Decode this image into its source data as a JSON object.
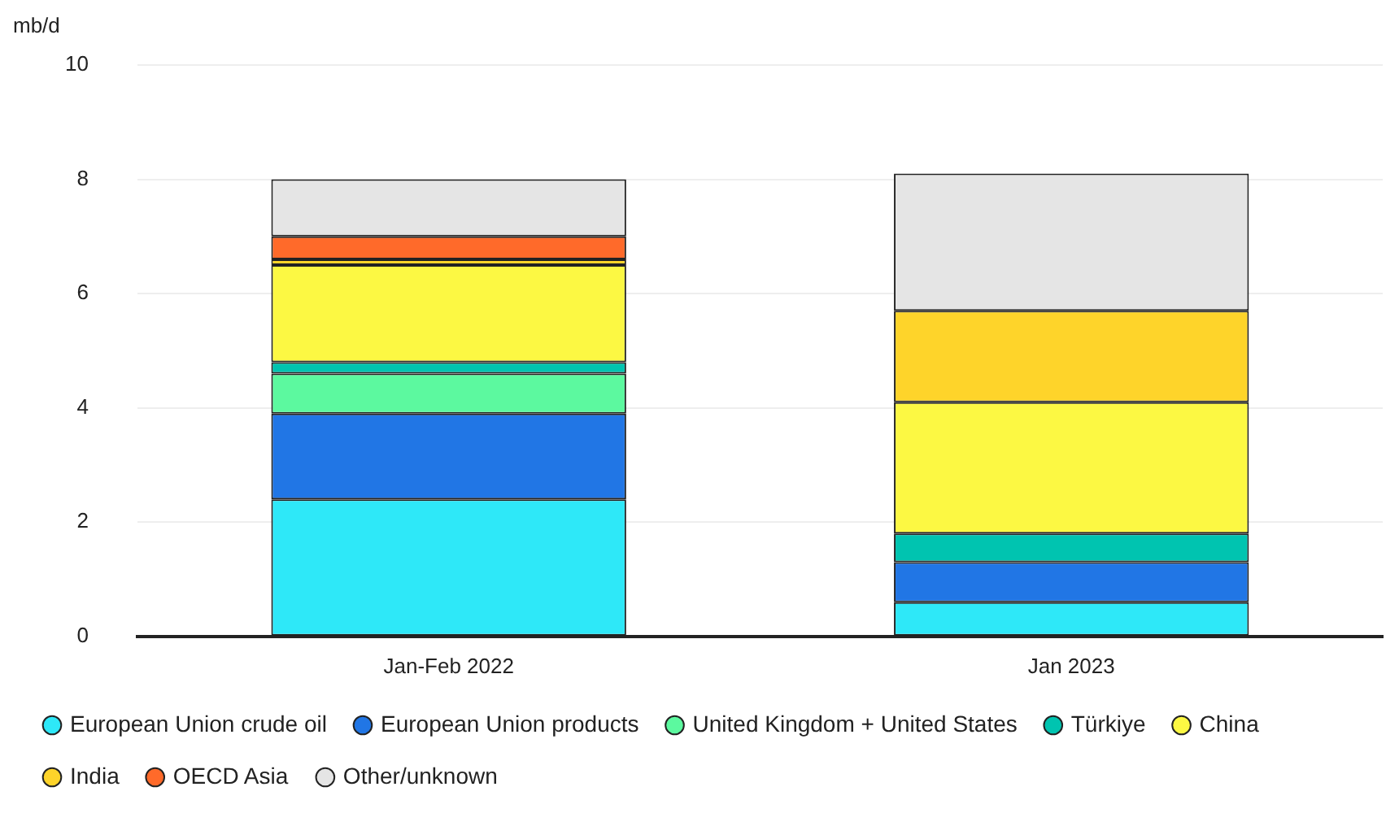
{
  "chart_data": {
    "type": "bar",
    "stacked": true,
    "ylabel": "mb/d",
    "categories": [
      "Jan-Feb 2022",
      "Jan 2023"
    ],
    "ylim": [
      0,
      10
    ],
    "yticks": [
      0,
      2,
      4,
      6,
      8,
      10
    ],
    "grid": "y",
    "legend": "bottom",
    "marker": "circle",
    "series": [
      {
        "name": "European Union crude oil",
        "color": "#2ee8f8",
        "values": [
          2.4,
          0.6
        ]
      },
      {
        "name": "European Union products",
        "color": "#2176e5",
        "values": [
          1.5,
          0.7
        ]
      },
      {
        "name": "United Kingdom + United States",
        "color": "#5cf99f",
        "values": [
          0.7,
          0
        ]
      },
      {
        "name": "Türkiye",
        "color": "#00c4b0",
        "values": [
          0.2,
          0.5
        ]
      },
      {
        "name": "China",
        "color": "#fcf843",
        "values": [
          1.7,
          2.3
        ]
      },
      {
        "name": "India",
        "color": "#fed42a",
        "values": [
          0.1,
          1.6
        ]
      },
      {
        "name": "OECD Asia",
        "color": "#ff6a2a",
        "values": [
          0.4,
          0
        ]
      },
      {
        "name": "Other/unknown",
        "color": "#e5e5e5",
        "values": [
          1.0,
          2.4
        ]
      }
    ]
  }
}
